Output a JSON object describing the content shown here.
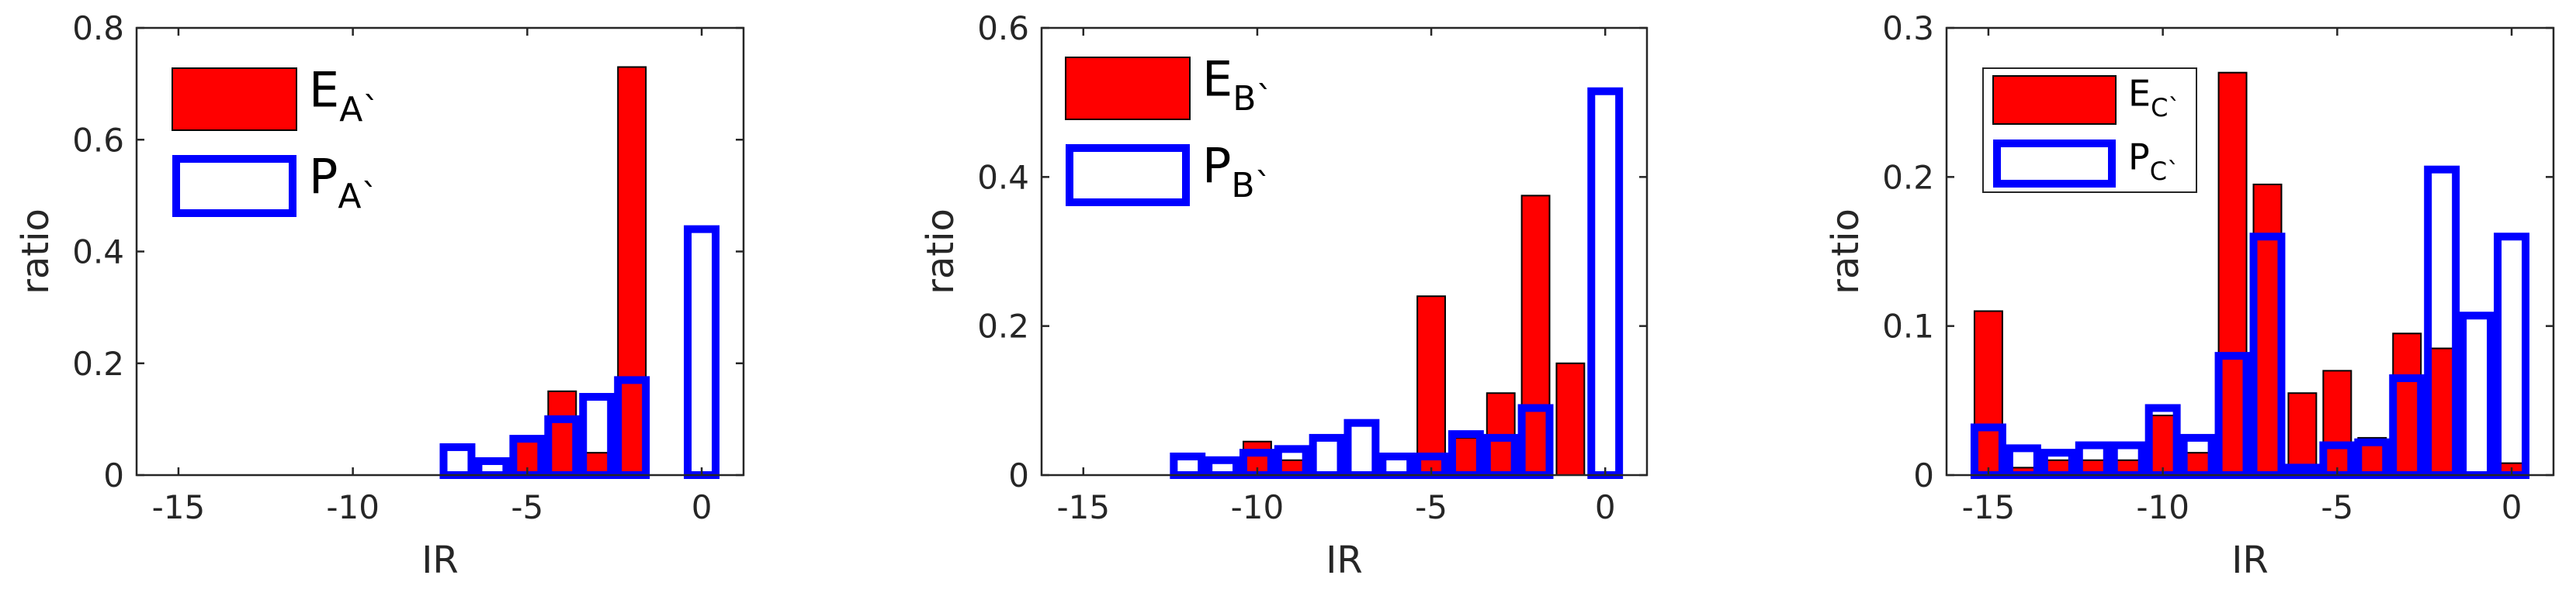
{
  "colors": {
    "E": "#ff0000",
    "P": "#0000ff",
    "axis": "#262626"
  },
  "chart_data": [
    {
      "type": "bar",
      "xlabel": "IR",
      "ylabel": "ratio",
      "xlim": [
        -16.2,
        1.2
      ],
      "ylim": [
        0,
        0.8
      ],
      "xticks": [
        -15,
        -10,
        -5,
        0
      ],
      "yticks": [
        0,
        0.2,
        0.4,
        0.6,
        0.8
      ],
      "ytick_labels": [
        "0",
        "0.2",
        "0.4",
        "0.6",
        "0.8"
      ],
      "legend_box": false,
      "x": [
        -15,
        -14,
        -13,
        -12,
        -11,
        -10,
        -9,
        -8,
        -7,
        -6,
        -5,
        -4,
        -3,
        -2,
        -1,
        0
      ],
      "series": [
        {
          "name": "E",
          "sub": "A`",
          "style": "filled",
          "values": [
            0,
            0,
            0,
            0,
            0,
            0,
            0,
            0,
            0,
            0,
            0.06,
            0.15,
            0.04,
            0.73,
            0,
            0
          ]
        },
        {
          "name": "P",
          "sub": "A`",
          "style": "outline",
          "values": [
            0,
            0,
            0,
            0,
            0,
            0,
            0,
            0,
            0.05,
            0.025,
            0.065,
            0.1,
            0.14,
            0.17,
            0,
            0.44
          ]
        }
      ]
    },
    {
      "type": "bar",
      "xlabel": "IR",
      "ylabel": "ratio",
      "xlim": [
        -16.2,
        1.2
      ],
      "ylim": [
        0,
        0.6
      ],
      "xticks": [
        -15,
        -10,
        -5,
        0
      ],
      "yticks": [
        0,
        0.2,
        0.4,
        0.6
      ],
      "ytick_labels": [
        "0",
        "0.2",
        "0.4",
        "0.6"
      ],
      "legend_box": false,
      "x": [
        -15,
        -14,
        -13,
        -12,
        -11,
        -10,
        -9,
        -8,
        -7,
        -6,
        -5,
        -4,
        -3,
        -2,
        -1,
        0
      ],
      "series": [
        {
          "name": "E",
          "sub": "B`",
          "style": "filled",
          "values": [
            0,
            0,
            0,
            0,
            0,
            0.045,
            0.02,
            0,
            0,
            0,
            0.24,
            0.05,
            0.11,
            0.375,
            0.15,
            0
          ]
        },
        {
          "name": "P",
          "sub": "B`",
          "style": "outline",
          "values": [
            0,
            0,
            0,
            0.025,
            0.02,
            0.03,
            0.035,
            0.05,
            0.07,
            0.025,
            0.025,
            0.055,
            0.05,
            0.09,
            0,
            0.515
          ]
        }
      ]
    },
    {
      "type": "bar",
      "xlabel": "IR",
      "ylabel": "ratio",
      "xlim": [
        -16.2,
        1.2
      ],
      "ylim": [
        0,
        0.3
      ],
      "xticks": [
        -15,
        -10,
        -5,
        0
      ],
      "yticks": [
        0,
        0.1,
        0.2,
        0.3
      ],
      "ytick_labels": [
        "0",
        "0.1",
        "0.2",
        "0.3"
      ],
      "legend_box": true,
      "x": [
        -15,
        -14,
        -13,
        -12,
        -11,
        -10,
        -9,
        -8,
        -7,
        -6,
        -5,
        -4,
        -3,
        -2,
        -1,
        0
      ],
      "series": [
        {
          "name": "E",
          "sub": "C`",
          "style": "filled",
          "values": [
            0.11,
            0.005,
            0.01,
            0.01,
            0.01,
            0.04,
            0.015,
            0.27,
            0.195,
            0.055,
            0.07,
            0.025,
            0.095,
            0.085,
            0,
            0.008
          ]
        },
        {
          "name": "P",
          "sub": "C`",
          "style": "outline",
          "values": [
            0.032,
            0.018,
            0.015,
            0.02,
            0.02,
            0.045,
            0.025,
            0.08,
            0.16,
            0.005,
            0.02,
            0.022,
            0.065,
            0.205,
            0.107,
            0.16
          ]
        }
      ]
    }
  ]
}
